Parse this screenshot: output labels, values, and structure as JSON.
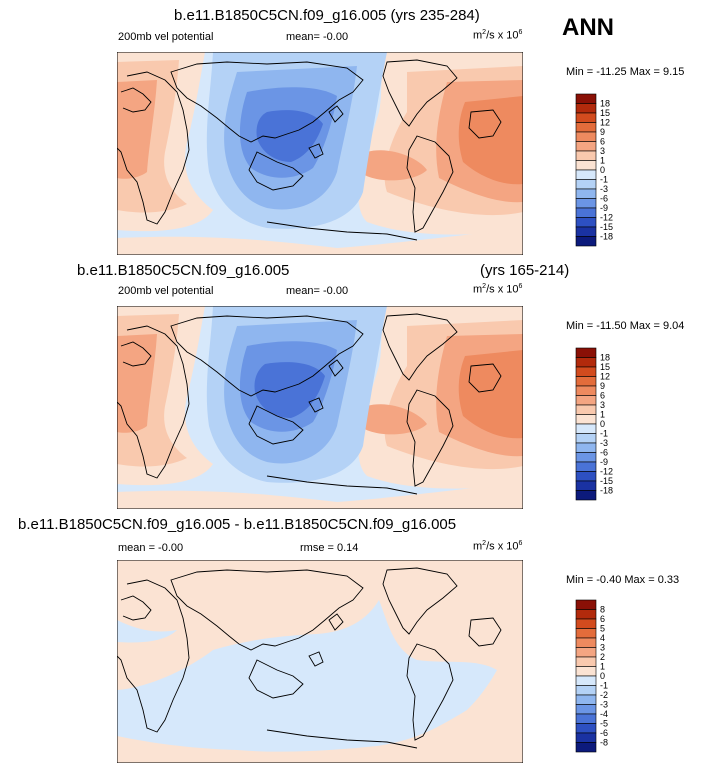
{
  "season": "ANN",
  "colors": {
    "pos": [
      "#fbe3d3",
      "#f9c9ae",
      "#f4a582",
      "#ee8a5f",
      "#e36c3b",
      "#d24b1e",
      "#b22a0c",
      "#8a1006"
    ],
    "neg": [
      "#d6e8fb",
      "#b4d2f6",
      "#8fb6ef",
      "#6b95e5",
      "#4a73d7",
      "#2d50c2",
      "#1a32a2",
      "#0c1a7c"
    ]
  },
  "chart_data": [
    {
      "type": "contour-map",
      "title": "b.e11.B1850C5CN.f09_g16.005 (yrs 235-284)",
      "left_label": "200mb vel potential",
      "mean_label": "mean=  -0.00",
      "units_label": "m²/s x 10⁶",
      "minmax_label": "Min = -11.25 Max =  9.15",
      "min": -11.25,
      "max": 9.15,
      "levels": [
        -18,
        -15,
        -12,
        -9,
        -6,
        -3,
        -1,
        0,
        1,
        3,
        6,
        9,
        12,
        15,
        18
      ],
      "level_labels": [
        "18",
        "15",
        "12",
        "9",
        "6",
        "3",
        "1",
        "0",
        "-1",
        "-3",
        "-6",
        "-9",
        "-12",
        "-15",
        "-18"
      ]
    },
    {
      "type": "contour-map",
      "title_left": "b.e11.B1850C5CN.f09_g16.005",
      "title_right": "(yrs 165-214)",
      "left_label": "200mb vel potential",
      "mean_label": "mean=  -0.00",
      "units_label": "m²/s x 10⁶",
      "minmax_label": "Min = -11.50 Max =  9.04",
      "min": -11.5,
      "max": 9.04,
      "levels": [
        -18,
        -15,
        -12,
        -9,
        -6,
        -3,
        -1,
        0,
        1,
        3,
        6,
        9,
        12,
        15,
        18
      ],
      "level_labels": [
        "18",
        "15",
        "12",
        "9",
        "6",
        "3",
        "1",
        "0",
        "-1",
        "-3",
        "-6",
        "-9",
        "-12",
        "-15",
        "-18"
      ]
    },
    {
      "type": "contour-map-difference",
      "title": "b.e11.B1850C5CN.f09_g16.005 - b.e11.B1850C5CN.f09_g16.005",
      "mean_label": "mean =  -0.00",
      "rmse_label": "rmse =  0.14",
      "units_label": "m²/s x 10⁶",
      "minmax_label": "Min =  -0.40 Max =  0.33",
      "min": -0.4,
      "max": 0.33,
      "rmse": 0.14,
      "levels": [
        -8,
        -6,
        -5,
        -4,
        -3,
        -2,
        -1,
        0,
        1,
        2,
        3,
        4,
        5,
        6,
        8
      ],
      "level_labels": [
        "8",
        "6",
        "5",
        "4",
        "3",
        "2",
        "1",
        "0",
        "-1",
        "-2",
        "-3",
        "-4",
        "-5",
        "-6",
        "-8"
      ]
    }
  ]
}
